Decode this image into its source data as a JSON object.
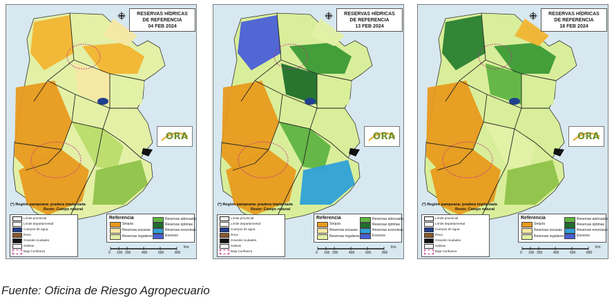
{
  "maps": [
    {
      "title_line1": "RESERVAS HÍDRICAS",
      "title_line2": "DE REFERENCIA",
      "date": "04 FEB 2024",
      "palette": [
        "#e89a1e",
        "#f2b431",
        "#f6e7a3",
        "#e3f0a6",
        "#b9dc6c",
        "#8fc24a",
        "#f2b431",
        "#f6e7a3"
      ]
    },
    {
      "title_line1": "RESERVAS HÍDRICAS",
      "title_line2": "DE REFERENCIA",
      "date": "13 FEB 2024",
      "palette": [
        "#e89a1e",
        "#3c9a36",
        "#1f6e2a",
        "#d9ee9a",
        "#5fb442",
        "#2fa0d8",
        "#4a5fd6",
        "#e3f0a6"
      ]
    },
    {
      "title_line1": "RESERVAS HÍDRICAS",
      "title_line2": "DE REFERENCIA",
      "date": "18 FEB 2024",
      "palette": [
        "#e89a1e",
        "#3c9a36",
        "#5fb442",
        "#d9ee9a",
        "#e3f0a6",
        "#8fc24a",
        "#2a7f30",
        "#f2b431"
      ]
    }
  ],
  "note": {
    "line1": "(*) Región pampeana: pradera implantada",
    "line2": "Resto: Campo natural"
  },
  "small_legend": [
    {
      "label": "Límite provincial",
      "color": "#ffffff"
    },
    {
      "label": "Límite departamental",
      "color": "#ffffff"
    },
    {
      "label": "Cuerpos de agua",
      "color": "#1f3f8f"
    },
    {
      "label": "Roca",
      "color": "#8a5a2b"
    },
    {
      "label": "Grandes ciudades",
      "color": "#111111"
    },
    {
      "label": "Salinas",
      "color": "#f4f4f4"
    },
    {
      "label": "Baja Confianza",
      "color": "#ffffff"
    }
  ],
  "reference": {
    "title": "Referencia",
    "items": [
      {
        "label": "Sequía",
        "color": "#e89a1e"
      },
      {
        "label": "Reservas escasas",
        "color": "#f6e7a3"
      },
      {
        "label": "Reservas regulares",
        "color": "#e3f0a6"
      },
      {
        "label": "Reservas adecuadas",
        "color": "#5fb442"
      },
      {
        "label": "Reservas óptimas",
        "color": "#1f6e2a"
      },
      {
        "label": "Reservas excesivas",
        "color": "#2fa0d8"
      },
      {
        "label": "Excesos",
        "color": "#4a5fd6"
      }
    ]
  },
  "scale": {
    "ticks": [
      "0",
      "100",
      "200",
      "400",
      "600",
      "800"
    ],
    "unit": "Km"
  },
  "logo_text": "ORA",
  "caption": "Fuente: Oficina de Riesgo Agropecuario"
}
